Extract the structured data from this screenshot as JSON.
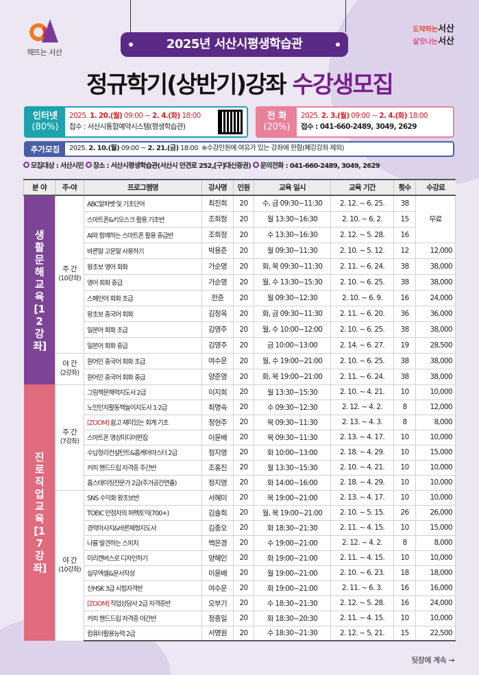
{
  "header": {
    "logo_text": "해뜨는 서산",
    "slogan1_prefix": "도약하는",
    "slogan1": "서산",
    "slogan2_prefix": "살맛나는",
    "slogan2": "서산",
    "pill_title": "2025년 서산시평생학습관",
    "title_main": "정규학기(상반기)강좌",
    "title_highlight": "수강생모집"
  },
  "colors": {
    "purple": "#5b2a86",
    "teal": "#1ea3ae",
    "pink": "#e9819b",
    "blue": "#4a5ea6",
    "section1": "#7d4496",
    "section2": "#e06a7e",
    "zoom_tag": "#d81f26"
  },
  "apply": {
    "internet": {
      "label": "인터넷",
      "ratio": "(80%)",
      "date_prefix": "2025.",
      "date_start": "1. 20.(월)",
      "time_start": "09:00 ~",
      "date_end": "2. 4.(화)",
      "time_end": "18:00",
      "reception": "접수 : 서산시통합예약시스템(평생학습관)",
      "qr_icon": "qr-code"
    },
    "phone": {
      "label": "전 화",
      "ratio": "(20%)",
      "date_prefix": "2025.",
      "date_start": "2. 3.(월)",
      "time_start": "09:00 ~",
      "date_end": "2. 4.(화)",
      "time_end": "18:00",
      "reception": "접수 : 041-660-2489, 3049, 2629"
    },
    "extra": {
      "label": "추가모집",
      "date_prefix": "2025.",
      "date_start": "2. 10.(월)",
      "time_start": "09:00 ~",
      "date_end": "2. 21.(금)",
      "time_end": "18:00",
      "note": "※수강인원에 여유가 있는 강좌에 한함(폐강강좌 제외)"
    }
  },
  "info": {
    "target_label": "모집대상 :",
    "target": "서산시민",
    "place_label": "장소 :",
    "place": "서산시평생학습관(서산시 안견로 252,[구]대신증권)",
    "contact_label": "문의전화 :",
    "contact": "041-660-2489, 3049, 2629"
  },
  "table": {
    "headers": [
      "분 야",
      "주·야",
      "프로그램명",
      "강사명",
      "인원",
      "교육 일시",
      "교육 기간",
      "횟수",
      "수강료"
    ],
    "sections": [
      {
        "field": "생활문해교육 [12강좌]",
        "groups": [
          {
            "label": "주 간",
            "count": "(10강좌)",
            "rows": [
              {
                "name": "ABC알파벳 및 기초단어",
                "teacher": "최진희",
                "cap": "20",
                "time": "수, 금 09:30~11:30",
                "period": "2. 12. ~ 6. 25.",
                "sessions": "38",
                "fee": "무료",
                "fee_span": 3
              },
              {
                "name": "스마트폰&키오스크 활용 기초반",
                "teacher": "조희정",
                "cap": "20",
                "time": "월 13:30~16:30",
                "period": "2. 10. ~ 6. 2.",
                "sessions": "15"
              },
              {
                "name": "AI와 함께하는 스마트폰 활용 중급반",
                "teacher": "조희정",
                "cap": "20",
                "time": "수 13:30~16:30",
                "period": "2. 12. ~ 5. 28.",
                "sessions": "16"
              },
              {
                "name": "바른말 고운말 사용하기",
                "teacher": "박용준",
                "cap": "20",
                "time": "월 09:30~11:30",
                "period": "2. 10. ~ 5. 12.",
                "sessions": "12",
                "fee": "12,000"
              },
              {
                "name": "왕초보 영어 회화",
                "teacher": "가순영",
                "cap": "20",
                "time": "화, 목 09:30~11:30",
                "period": "2. 11. ~ 6. 24.",
                "sessions": "38",
                "fee": "38,000"
              },
              {
                "name": "영어 회화 중급",
                "teacher": "가순영",
                "cap": "20",
                "time": "월, 수 13:30~15:30",
                "period": "2. 10. ~ 6. 25.",
                "sessions": "38",
                "fee": "38,000"
              },
              {
                "name": "스페인어 회화 초급",
                "teacher": "한준",
                "cap": "20",
                "time": "월 09:30~12:30",
                "period": "2. 10. ~ 6. 9.",
                "sessions": "16",
                "fee": "24,000"
              },
              {
                "name": "왕초보 중국어 회화",
                "teacher": "김정옥",
                "cap": "20",
                "time": "화, 금 09:30~11:30",
                "period": "2. 11. ~ 6. 20.",
                "sessions": "36",
                "fee": "36,000"
              },
              {
                "name": "일본어 회화 초급",
                "teacher": "김영주",
                "cap": "20",
                "time": "월, 수 10:00~12:00",
                "period": "2. 10. ~ 6. 25.",
                "sessions": "38",
                "fee": "38,000"
              },
              {
                "name": "일본어 회화 중급",
                "teacher": "김영주",
                "cap": "20",
                "time": "금 10:00~13:00",
                "period": "2. 14. ~ 6. 27.",
                "sessions": "19",
                "fee": "28,500"
              }
            ]
          },
          {
            "label": "야 간",
            "count": "(2강좌)",
            "rows": [
              {
                "name": "원어민 중국어 회화 초급",
                "teacher": "여수운",
                "cap": "20",
                "time": "월, 수 19:00~21:00",
                "period": "2. 10. ~ 6. 25.",
                "sessions": "38",
                "fee": "38,000"
              },
              {
                "name": "원어민 중국어 회화 중급",
                "teacher": "양준영",
                "cap": "20",
                "time": "화, 목 19:00~21:00",
                "period": "2. 11. ~ 6. 24.",
                "sessions": "38",
                "fee": "38,000"
              }
            ]
          }
        ]
      },
      {
        "field": "진로직업교육 [17강좌]",
        "groups": [
          {
            "label": "주 간",
            "count": "(7강좌)",
            "rows": [
              {
                "name": "그림책문해력지도사 2급",
                "teacher": "이지희",
                "cap": "20",
                "time": "월 13:30~15:30",
                "period": "2. 10. ~ 4. 21.",
                "sessions": "10",
                "fee": "10,000"
              },
              {
                "name": "노인인지활동책놀이지도사 1·2급",
                "teacher": "최명숙",
                "cap": "20",
                "time": "수 09:30~12:30",
                "period": "2. 12. ~ 4. 2.",
                "sessions": "8",
                "fee": "12,000"
              },
              {
                "tag": "[ZOOM]",
                "name": " 쉽고 재미있는 회계 기초",
                "teacher": "정현주",
                "cap": "20",
                "time": "목 09:30~11:30",
                "period": "2. 13. ~ 4. 3.",
                "sessions": "8",
                "fee": "8,000"
              },
              {
                "name": "스마트폰 영상미디어편집",
                "teacher": "이윤배",
                "cap": "20",
                "time": "목 09:30~11:30",
                "period": "2. 13. ~ 4. 17.",
                "sessions": "10",
                "fee": "10,000"
              },
              {
                "name": "수납정리컨설턴트&홈케어마스터 2급",
                "teacher": "정지영",
                "cap": "20",
                "time": "화 10:00~13:00",
                "period": "2. 18. ~ 4. 29.",
                "sessions": "10",
                "fee": "15,000"
              },
              {
                "name": "커피 핸드드립 자격증 주간반",
                "teacher": "조홍진",
                "cap": "20",
                "time": "월 13:30~15:30",
                "period": "2. 10. ~ 4. 21.",
                "sessions": "10",
                "fee": "10,000"
              },
              {
                "name": "홈스테이징전문가 2급(주거공간연출)",
                "teacher": "정지영",
                "cap": "20",
                "time": "화 14:00~16:00",
                "period": "2. 18. ~ 4. 29.",
                "sessions": "10",
                "fee": "10,000"
              }
            ]
          },
          {
            "label": "야 간",
            "count": "(10강좌)",
            "rows": [
              {
                "name": "SNS 수익화 왕초보반",
                "teacher": "서혜미",
                "cap": "20",
                "time": "목 19:00~21:00",
                "period": "2. 13. ~ 4. 17.",
                "sessions": "10",
                "fee": "10,000"
              },
              {
                "name": "TOEIC 만점자의 퍼펙토익(700+)",
                "teacher": "김솔희",
                "cap": "20",
                "time": "월, 목 19:00~21:00",
                "period": "2. 10. ~ 5. 15.",
                "sessions": "26",
                "fee": "26,000"
              },
              {
                "name": "경락마사지&바른체형지도사",
                "teacher": "김종오",
                "cap": "20",
                "time": "화 18:30~21:30",
                "period": "2. 11. ~ 4. 15.",
                "sessions": "10",
                "fee": "15,000"
              },
              {
                "name": "나를 발견하는 스피치",
                "teacher": "백은경",
                "cap": "20",
                "time": "수 19:00~21:00",
                "period": "2. 12. ~ 4. 2.",
                "sessions": "8",
                "fee": "8,000"
              },
              {
                "name": "미리캔버스로 디자인하기",
                "teacher": "양혜인",
                "cap": "20",
                "time": "화 19:00~21:00",
                "period": "2. 11. ~ 4. 15.",
                "sessions": "10",
                "fee": "10,000"
              },
              {
                "name": "실무엑셀&문서작성",
                "teacher": "이윤배",
                "cap": "20",
                "time": "월 19:00~21:00",
                "period": "2. 10. ~ 6. 23.",
                "sessions": "18",
                "fee": "18,000"
              },
              {
                "name": "신HSK 3급 시험자격반",
                "teacher": "여수운",
                "cap": "20",
                "time": "화 19:00~21:00",
                "period": "2. 11. ~ 6. 3.",
                "sessions": "16",
                "fee": "16,000"
              },
              {
                "tag": "[ZOOM]",
                "name": " 직업상담사 2급 자격증반",
                "teacher": "오부기",
                "cap": "20",
                "time": "수 18:30~21:30",
                "period": "2. 12. ~ 5. 28.",
                "sessions": "16",
                "fee": "24,000"
              },
              {
                "name": "커피 핸드드립 자격증 야간반",
                "teacher": "정종일",
                "cap": "20",
                "time": "화 18:30~20:30",
                "period": "2. 11. ~ 4. 15.",
                "sessions": "10",
                "fee": "10,000"
              },
              {
                "name": "컴퓨터활용능력 2급",
                "teacher": "서명원",
                "cap": "20",
                "time": "수 18:30~21:30",
                "period": "2. 12. ~ 5. 21.",
                "sessions": "15",
                "fee": "22,500"
              }
            ]
          }
        ]
      }
    ]
  },
  "footer": {
    "continue": "뒷장에 계속 →"
  }
}
